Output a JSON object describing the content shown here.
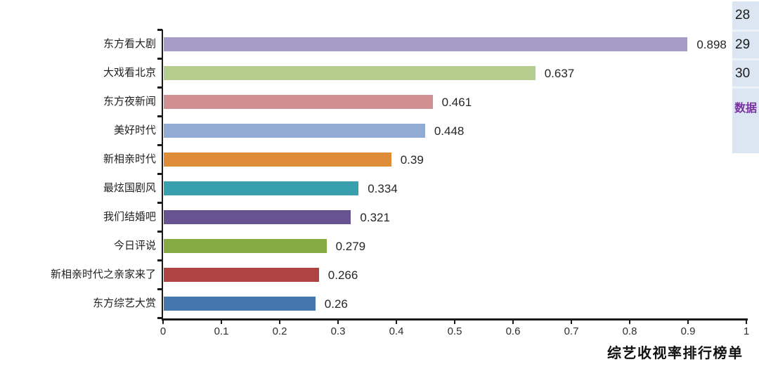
{
  "chart_data": {
    "type": "bar",
    "orientation": "horizontal",
    "title": "",
    "xlabel": "综艺收视率排行榜单",
    "ylabel": "",
    "xlim": [
      0,
      1
    ],
    "x_ticks": [
      "0",
      "0.1",
      "0.2",
      "0.3",
      "0.4",
      "0.5",
      "0.6",
      "0.7",
      "0.8",
      "0.9",
      "1"
    ],
    "categories": [
      "东方看大剧",
      "大戏看北京",
      "东方夜新闻",
      "美好时代",
      "新相亲时代",
      "最炫国剧风",
      "我们结婚吧",
      "今日评说",
      "新相亲时代之亲家来了",
      "东方综艺大赏"
    ],
    "values": [
      0.898,
      0.637,
      0.461,
      0.448,
      0.39,
      0.334,
      0.321,
      0.279,
      0.266,
      0.26
    ],
    "value_labels": [
      "0.898",
      "0.637",
      "0.461",
      "0.448",
      "0.39",
      "0.334",
      "0.321",
      "0.279",
      "0.266",
      "0.26"
    ],
    "bar_colors": [
      "#a79cc8",
      "#b5cd8e",
      "#d08f93",
      "#92abd4",
      "#df8c38",
      "#38a0ad",
      "#675390",
      "#87aa44",
      "#af4243",
      "#4577af"
    ],
    "grid": false,
    "legend": null
  },
  "side_panel": {
    "background": "#dce6f2",
    "items": [
      {
        "label": "28"
      },
      {
        "label": "29"
      },
      {
        "label": "30"
      },
      {
        "label": "数据"
      }
    ],
    "link_color": "#7b2fa4"
  },
  "colors": {
    "axis": "#1a1a1a",
    "tick_label": "#2f2f2f",
    "value_label": "#262626",
    "background": "#ffffff"
  }
}
